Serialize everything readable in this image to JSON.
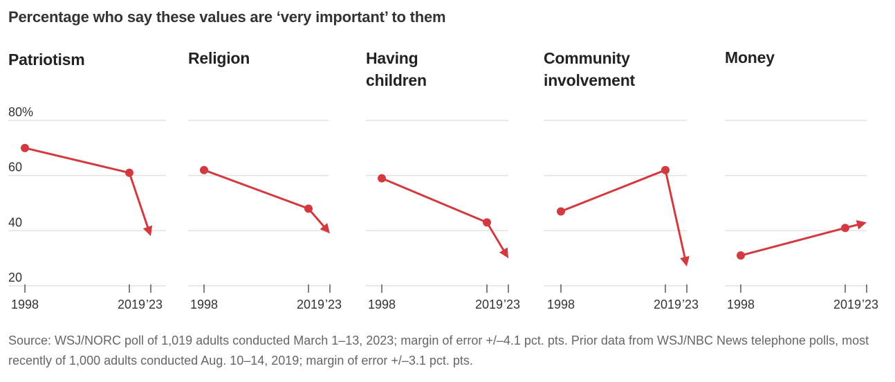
{
  "title": "Percentage who say these values are ‘very important’ to them",
  "source": "Source: WSJ/NORC poll of 1,019 adults conducted March 1–13, 2023; margin of error +/–4.1 pct. pts. Prior data from WSJ/NBC News telephone polls, most recently of 1,000 adults conducted Aug. 10–14, 2019; margin of error +/–3.1 pct. pts.",
  "colors": {
    "line": "#d23a3f",
    "grid": "#e2e2e2",
    "axis": "#555555"
  },
  "chart_data": [
    {
      "type": "line",
      "title": "Patriotism",
      "x": [
        "1998",
        "2019",
        "’23"
      ],
      "y": [
        70,
        61,
        38
      ],
      "ylim": [
        20,
        80
      ],
      "yticks": [
        "80%",
        "60",
        "40",
        "20"
      ]
    },
    {
      "type": "line",
      "title": "Religion",
      "x": [
        "1998",
        "2019",
        "’23"
      ],
      "y": [
        62,
        48,
        39
      ],
      "ylim": [
        20,
        80
      ]
    },
    {
      "type": "line",
      "title": "Having children",
      "x": [
        "1998",
        "2019",
        "’23"
      ],
      "y": [
        59,
        43,
        30
      ],
      "ylim": [
        20,
        80
      ]
    },
    {
      "type": "line",
      "title": "Community involvement",
      "x": [
        "1998",
        "2019",
        "’23"
      ],
      "y": [
        47,
        62,
        27
      ],
      "ylim": [
        20,
        80
      ]
    },
    {
      "type": "line",
      "title": "Money",
      "x": [
        "1998",
        "2019",
        "’23"
      ],
      "y": [
        31,
        41,
        43
      ],
      "ylim": [
        20,
        80
      ]
    }
  ]
}
